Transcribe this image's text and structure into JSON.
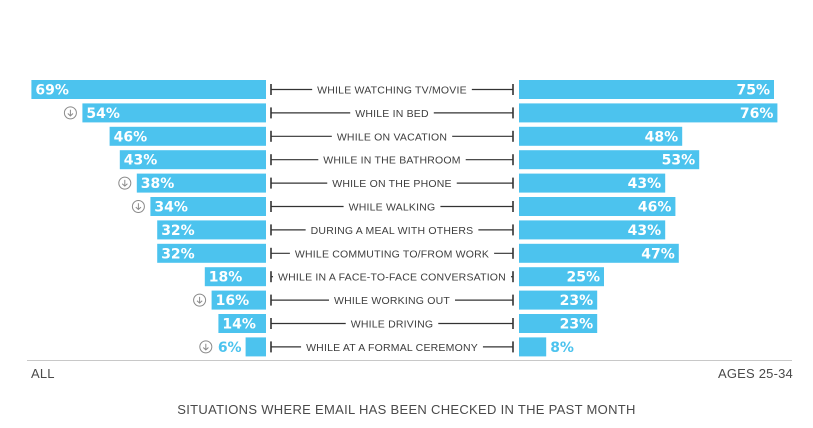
{
  "chart_data": {
    "type": "bar",
    "title": "SITUATIONS WHERE EMAIL HAS BEEN CHECKED IN THE PAST MONTH",
    "left_label": "ALL",
    "right_label": "AGES 25-34",
    "bar_color": "#4cc3ee",
    "decrease_icon": "down-arrow-circle-icon",
    "xlim": [
      0,
      100
    ],
    "categories": [
      "WHILE WATCHING TV/MOVIE",
      "WHILE IN BED",
      "WHILE ON VACATION",
      "WHILE IN THE BATHROOM",
      "WHILE ON THE PHONE",
      "WHILE WALKING",
      "DURING A MEAL WITH OTHERS",
      "WHILE COMMUTING TO/FROM WORK",
      "WHILE IN A FACE-TO-FACE CONVERSATION",
      "WHILE WORKING OUT",
      "WHILE DRIVING",
      "WHILE AT A FORMAL CEREMONY"
    ],
    "series": [
      {
        "name": "ALL",
        "values": [
          69,
          54,
          46,
          43,
          38,
          34,
          32,
          32,
          18,
          16,
          14,
          6
        ],
        "labels": [
          "69%",
          "54%",
          "46%",
          "43%",
          "38%",
          "34%",
          "32%",
          "32%",
          "18%",
          "16%",
          "14%",
          "6%"
        ],
        "decrease_marker": [
          false,
          true,
          false,
          false,
          true,
          true,
          false,
          false,
          false,
          true,
          false,
          true
        ]
      },
      {
        "name": "AGES 25-34",
        "values": [
          75,
          76,
          48,
          53,
          43,
          46,
          43,
          47,
          25,
          23,
          23,
          8
        ],
        "labels": [
          "75%",
          "76%",
          "48%",
          "53%",
          "43%",
          "46%",
          "43%",
          "47%",
          "25%",
          "23%",
          "23%",
          "8%"
        ]
      }
    ]
  }
}
